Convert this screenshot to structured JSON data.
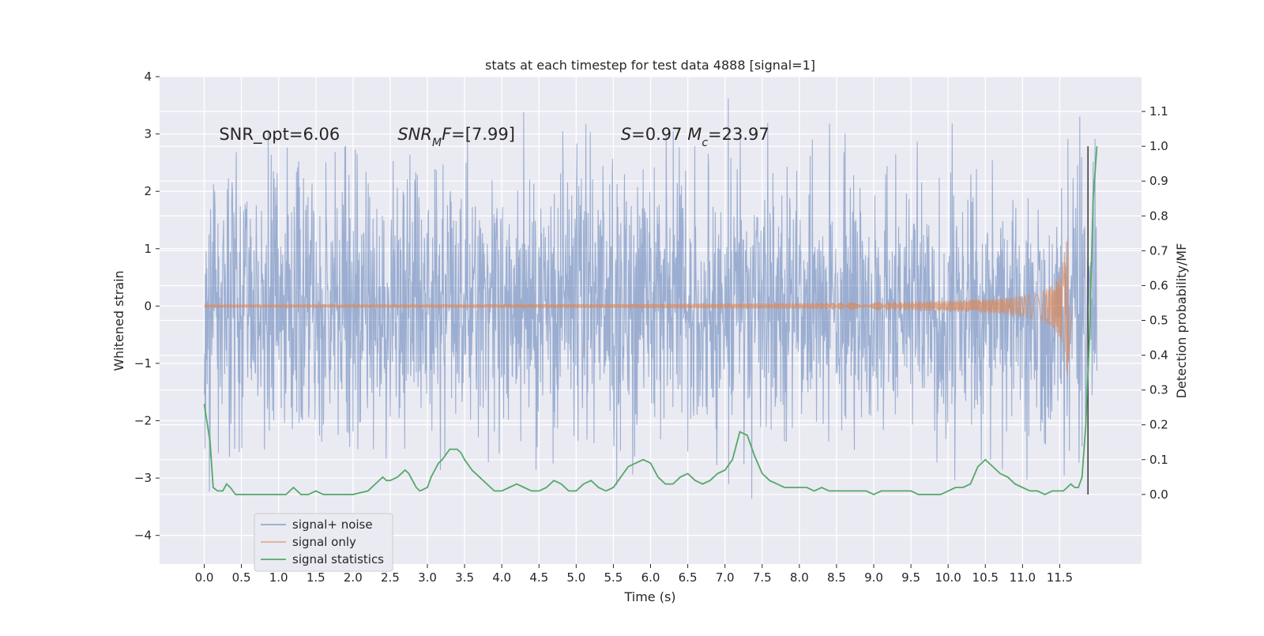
{
  "chart_data": {
    "type": "line",
    "title": "stats at each timestep for test data 4888 [signal=1]",
    "xlabel": "Time (s)",
    "ylabel": "Whitened strain",
    "ylabel_right": "Detection probability/MF",
    "xlim": [
      -0.6,
      12.6
    ],
    "ylim": [
      -4.5,
      4.0
    ],
    "ylim_right": [
      -0.2,
      1.2
    ],
    "xticks": [
      0.0,
      0.5,
      1.0,
      1.5,
      2.0,
      2.5,
      3.0,
      3.5,
      4.0,
      4.5,
      5.0,
      5.5,
      6.0,
      6.5,
      7.0,
      7.5,
      8.0,
      8.5,
      9.0,
      9.5,
      10.0,
      10.5,
      11.0,
      11.5
    ],
    "xtick_labels": [
      "0.0",
      "0.5",
      "1.0",
      "1.5",
      "2.0",
      "2.5",
      "3.0",
      "3.5",
      "4.0",
      "4.5",
      "5.0",
      "5.5",
      "6.0",
      "6.5",
      "7.0",
      "7.5",
      "8.0",
      "8.5",
      "9.0",
      "9.5",
      "10.0",
      "10.5",
      "11.0",
      "11.5"
    ],
    "yticks": [
      -4,
      -3,
      -2,
      -1,
      0,
      1,
      2,
      3,
      4
    ],
    "ytick_labels": [
      "−4",
      "−3",
      "−2",
      "−1",
      "0",
      "1",
      "2",
      "3",
      "4"
    ],
    "yticks_right": [
      0.0,
      0.1,
      0.2,
      0.3,
      0.4,
      0.5,
      0.6,
      0.7,
      0.8,
      0.9,
      1.0,
      1.1
    ],
    "ytick_labels_right": [
      "0.0",
      "0.1",
      "0.2",
      "0.3",
      "0.4",
      "0.5",
      "0.6",
      "0.7",
      "0.8",
      "0.9",
      "1.0",
      "1.1"
    ],
    "grid": true,
    "legend_position": "lower-left",
    "annotations": [
      {
        "text": "SNR_opt=6.06",
        "x": 0.2,
        "y": 2.9
      },
      {
        "text": "SNR_MF=[7.99]",
        "x": 2.6,
        "y": 2.9
      },
      {
        "text": "S=0.97   M_c=23.97",
        "x": 5.6,
        "y": 2.9
      }
    ],
    "vline_x": 11.88,
    "series": [
      {
        "name": "signal+ noise",
        "color": "#4c72b0",
        "axis": "left",
        "x_range": [
          0.0,
          12.0
        ],
        "envelope_typical_abs": 1.6,
        "max": 3.62,
        "min": -3.42
      },
      {
        "name": "signal only",
        "color": "#dd8452",
        "axis": "left",
        "x_range": [
          0.0,
          11.67
        ],
        "peak_amplitude": 1.25,
        "merger_x": 11.62
      },
      {
        "name": "signal statistics",
        "color": "#55a868",
        "axis": "right",
        "x": [
          0.0,
          0.08,
          0.12,
          0.18,
          0.25,
          0.3,
          0.35,
          0.42,
          0.5,
          0.6,
          0.7,
          0.8,
          0.9,
          1.0,
          1.1,
          1.2,
          1.25,
          1.3,
          1.4,
          1.5,
          1.6,
          1.7,
          1.8,
          2.0,
          2.2,
          2.3,
          2.4,
          2.45,
          2.5,
          2.6,
          2.7,
          2.75,
          2.8,
          2.85,
          2.9,
          3.0,
          3.05,
          3.1,
          3.15,
          3.2,
          3.3,
          3.4,
          3.45,
          3.5,
          3.6,
          3.7,
          3.8,
          3.9,
          4.0,
          4.1,
          4.2,
          4.3,
          4.4,
          4.5,
          4.6,
          4.7,
          4.8,
          4.9,
          5.0,
          5.1,
          5.2,
          5.3,
          5.4,
          5.5,
          5.6,
          5.7,
          5.8,
          5.9,
          6.0,
          6.1,
          6.2,
          6.3,
          6.4,
          6.5,
          6.6,
          6.7,
          6.8,
          6.9,
          7.0,
          7.1,
          7.2,
          7.3,
          7.4,
          7.5,
          7.6,
          7.7,
          7.8,
          7.9,
          8.0,
          8.1,
          8.2,
          8.3,
          8.4,
          8.5,
          8.6,
          8.7,
          8.8,
          8.9,
          9.0,
          9.1,
          9.2,
          9.3,
          9.4,
          9.5,
          9.6,
          9.7,
          9.8,
          9.9,
          10.0,
          10.1,
          10.2,
          10.3,
          10.4,
          10.5,
          10.6,
          10.7,
          10.8,
          10.9,
          11.0,
          11.1,
          11.2,
          11.3,
          11.4,
          11.5,
          11.55,
          11.6,
          11.65,
          11.7,
          11.75,
          11.8,
          11.85,
          11.9,
          11.95,
          12.0
        ],
        "values": [
          0.26,
          0.15,
          0.02,
          0.01,
          0.01,
          0.03,
          0.02,
          0.0,
          0.0,
          0.0,
          0.0,
          0.0,
          0.0,
          0.0,
          0.0,
          0.02,
          0.01,
          0.0,
          0.0,
          0.01,
          0.0,
          0.0,
          0.0,
          0.0,
          0.01,
          0.03,
          0.05,
          0.04,
          0.04,
          0.05,
          0.07,
          0.06,
          0.04,
          0.02,
          0.01,
          0.02,
          0.05,
          0.07,
          0.09,
          0.1,
          0.13,
          0.13,
          0.12,
          0.1,
          0.07,
          0.05,
          0.03,
          0.01,
          0.01,
          0.02,
          0.03,
          0.02,
          0.01,
          0.01,
          0.02,
          0.04,
          0.03,
          0.01,
          0.01,
          0.03,
          0.04,
          0.02,
          0.01,
          0.02,
          0.05,
          0.08,
          0.09,
          0.1,
          0.09,
          0.05,
          0.03,
          0.03,
          0.05,
          0.06,
          0.04,
          0.03,
          0.04,
          0.06,
          0.07,
          0.1,
          0.18,
          0.17,
          0.11,
          0.06,
          0.04,
          0.03,
          0.02,
          0.02,
          0.02,
          0.02,
          0.01,
          0.02,
          0.01,
          0.01,
          0.01,
          0.01,
          0.01,
          0.01,
          0.0,
          0.01,
          0.01,
          0.01,
          0.01,
          0.01,
          0.0,
          0.0,
          0.0,
          0.0,
          0.01,
          0.02,
          0.02,
          0.03,
          0.08,
          0.1,
          0.08,
          0.06,
          0.05,
          0.03,
          0.02,
          0.01,
          0.01,
          0.0,
          0.01,
          0.01,
          0.01,
          0.02,
          0.03,
          0.02,
          0.02,
          0.05,
          0.2,
          0.45,
          0.85,
          1.0
        ]
      }
    ]
  }
}
